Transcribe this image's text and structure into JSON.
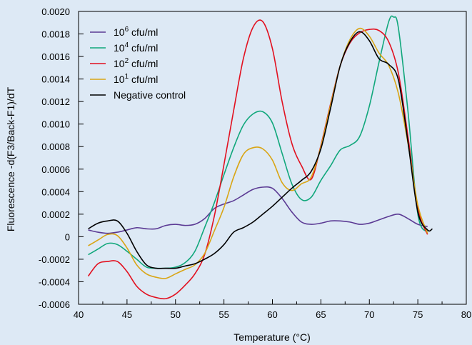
{
  "chart_data": {
    "type": "line",
    "xlabel": "Temperature (°C)",
    "ylabel": "Fluorescence -d(F3/Back-F1)/dT",
    "xlim": [
      40,
      80
    ],
    "ylim": [
      -0.0006,
      0.002
    ],
    "x_ticks": [
      "40",
      "45",
      "50",
      "55",
      "60",
      "65",
      "70",
      "75",
      "80"
    ],
    "y_ticks": [
      "0.0020",
      "0.0018",
      "0.0016",
      "0.0014",
      "0.0012",
      "0.0010",
      "0.0008",
      "0.0006",
      "0.0004",
      "0.0002",
      "0",
      "-0.0002",
      "-0.0004",
      "-0.0006"
    ],
    "grid": false,
    "legend_position": "top-left",
    "background_color": "#dde9f5",
    "series": [
      {
        "name": "10⁶ cfu/ml",
        "label_base": "10",
        "label_sup": "6",
        "label_rest": " cfu/ml",
        "color": "#5b3a94",
        "x": [
          41,
          42,
          43,
          44,
          45,
          46,
          47,
          48,
          49,
          50,
          51,
          52,
          53,
          54,
          55,
          56,
          57,
          58,
          59,
          60,
          61,
          62,
          63,
          64,
          65,
          66,
          67,
          68,
          69,
          70,
          71,
          72,
          73,
          74,
          75,
          76
        ],
        "y": [
          6e-05,
          4e-05,
          3e-05,
          4e-05,
          6e-05,
          8e-05,
          7e-05,
          7e-05,
          0.0001,
          0.00011,
          0.0001,
          0.00011,
          0.00016,
          0.00025,
          0.00029,
          0.00032,
          0.00037,
          0.00042,
          0.00044,
          0.00043,
          0.00034,
          0.00022,
          0.00013,
          0.00011,
          0.00012,
          0.00014,
          0.00014,
          0.00013,
          0.00011,
          0.00012,
          0.00015,
          0.00018,
          0.0002,
          0.00016,
          0.00011,
          9e-05
        ]
      },
      {
        "name": "10⁴ cfu/ml",
        "label_base": "10",
        "label_sup": "4",
        "label_rest": " cfu/ml",
        "color": "#10a77b",
        "x": [
          41,
          42,
          43,
          44,
          45,
          46,
          47,
          48,
          49,
          50,
          51,
          52,
          53,
          54,
          55,
          56,
          57,
          58,
          59,
          60,
          61,
          62,
          63,
          64,
          65,
          66,
          67,
          68,
          69,
          70,
          71,
          72,
          72.5,
          73,
          74,
          75,
          76
        ],
        "y": [
          -0.00016,
          -0.00011,
          -6e-05,
          -7e-05,
          -0.00013,
          -0.0002,
          -0.00027,
          -0.00028,
          -0.00028,
          -0.00027,
          -0.00023,
          -0.00013,
          8e-05,
          0.0003,
          0.00055,
          0.00079,
          0.00099,
          0.00109,
          0.00111,
          0.00101,
          0.00074,
          0.00047,
          0.00033,
          0.00035,
          0.0005,
          0.00063,
          0.00077,
          0.00081,
          0.00089,
          0.00116,
          0.00155,
          0.00191,
          0.00195,
          0.00185,
          0.0011,
          0.0002,
          4e-05
        ]
      },
      {
        "name": "10² cfu/ml",
        "label_base": "10",
        "label_sup": "2",
        "label_rest": " cfu/ml",
        "color": "#e2101f",
        "x": [
          41,
          42,
          43,
          44,
          45,
          46,
          47,
          48,
          49,
          50,
          51,
          52,
          53,
          54,
          55,
          56,
          57,
          58,
          59,
          60,
          61,
          62,
          63,
          64,
          65,
          66,
          67,
          68,
          69,
          70,
          71,
          72,
          73,
          74,
          75,
          76
        ],
        "y": [
          -0.00035,
          -0.00024,
          -0.00022,
          -0.00022,
          -0.00031,
          -0.00044,
          -0.00051,
          -0.00054,
          -0.00055,
          -0.00051,
          -0.00043,
          -0.00033,
          -0.00016,
          0.00018,
          0.00064,
          0.00112,
          0.00158,
          0.00186,
          0.00191,
          0.00167,
          0.0012,
          0.00083,
          0.00063,
          0.00051,
          0.00081,
          0.00118,
          0.00152,
          0.00172,
          0.00181,
          0.00184,
          0.00183,
          0.00173,
          0.00145,
          0.00088,
          0.00025,
          2e-05
        ]
      },
      {
        "name": "10¹ cfu/ml",
        "label_base": "10",
        "label_sup": "1",
        "label_rest": " cfu/ml",
        "color": "#d9a514",
        "x": [
          41,
          42,
          43,
          44,
          45,
          46,
          47,
          48,
          49,
          50,
          51,
          52,
          53,
          54,
          55,
          56,
          57,
          58,
          59,
          60,
          61,
          62,
          63,
          64,
          65,
          66,
          67,
          68,
          69,
          70,
          71,
          72,
          73,
          74,
          75,
          76
        ],
        "y": [
          -8e-05,
          -3e-05,
          2e-05,
          1e-05,
          -0.0001,
          -0.00025,
          -0.00033,
          -0.00036,
          -0.00037,
          -0.00033,
          -0.00029,
          -0.00025,
          -0.00015,
          5e-05,
          0.00026,
          0.00053,
          0.00073,
          0.00079,
          0.00078,
          0.00068,
          0.00048,
          0.00041,
          0.00047,
          0.00053,
          0.0008,
          0.00117,
          0.00152,
          0.00175,
          0.00185,
          0.00178,
          0.00163,
          0.00152,
          0.00127,
          0.00082,
          0.00028,
          3e-05
        ]
      },
      {
        "name": "Negative control",
        "label_base": "Negative control",
        "label_sup": "",
        "label_rest": "",
        "color": "#000000",
        "x": [
          41,
          42,
          43,
          44,
          45,
          46,
          47,
          48,
          49,
          50,
          51,
          52,
          53,
          54,
          55,
          56,
          57,
          58,
          59,
          60,
          61,
          62,
          63,
          64,
          65,
          66,
          67,
          68,
          69,
          70,
          71,
          72,
          73,
          74,
          75,
          76,
          76.5
        ],
        "y": [
          7e-05,
          0.00012,
          0.00014,
          0.00014,
          3e-05,
          -0.00013,
          -0.00025,
          -0.00028,
          -0.00028,
          -0.00028,
          -0.00026,
          -0.00024,
          -0.0002,
          -0.00015,
          -7e-05,
          4e-05,
          8e-05,
          0.00013,
          0.0002,
          0.00027,
          0.00035,
          0.00043,
          0.0005,
          0.00058,
          0.00078,
          0.00114,
          0.00152,
          0.00173,
          0.00182,
          0.00174,
          0.00158,
          0.00153,
          0.00139,
          0.00083,
          0.00022,
          6e-05,
          7e-05
        ]
      }
    ]
  }
}
